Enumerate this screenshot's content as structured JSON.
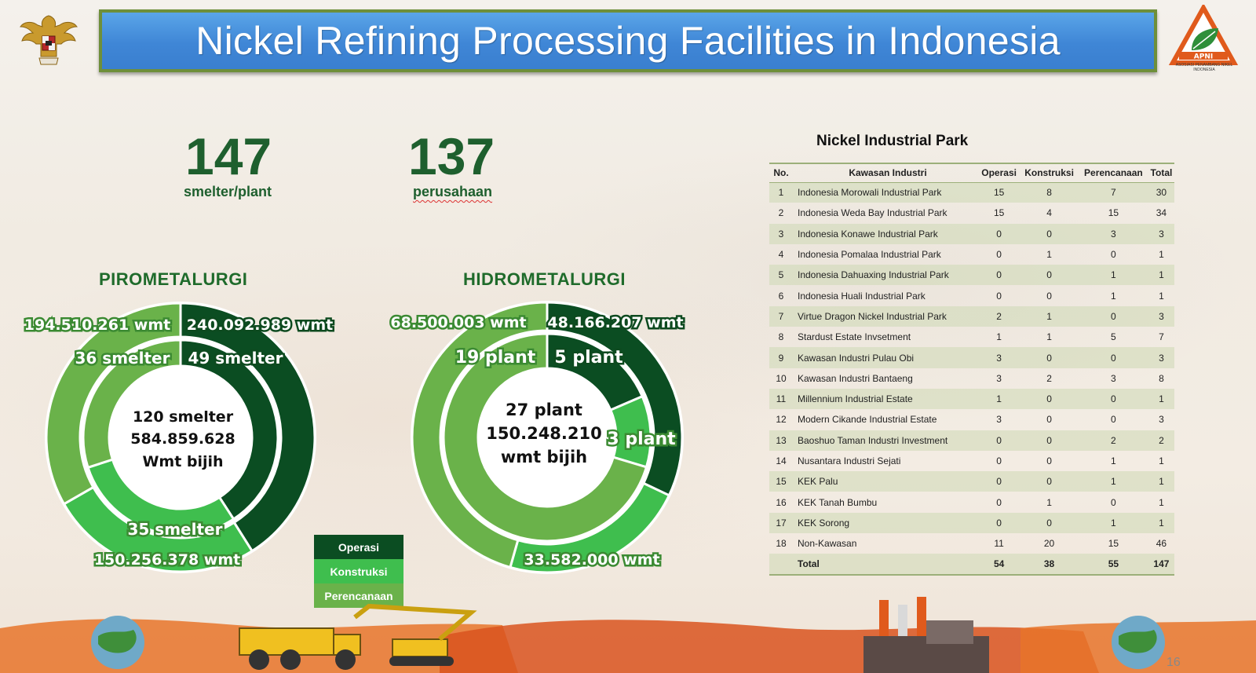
{
  "header": {
    "title": "Nickel Refining Processing Facilities in Indonesia"
  },
  "logo": {
    "apni": "APNI",
    "apni_caption": "ASOSIASI PENAMBANG NIKEL INDONESIA"
  },
  "stats": [
    {
      "value": "147",
      "label": "smelter/plant"
    },
    {
      "value": "137",
      "label": "perusahaan"
    }
  ],
  "colors": {
    "operasi": "#0b4d22",
    "konstruksi": "#3fbe4e",
    "perencanaan": "#6ab24a",
    "title_blue": "#3f86d6"
  },
  "chart_data": [
    {
      "type": "pie",
      "title": "PIROMETALURGI",
      "center": [
        "120 smelter",
        "584.859.628",
        "Wmt bijih"
      ],
      "categories": [
        "Operasi",
        "Konstruksi",
        "Perencanaan"
      ],
      "series": [
        {
          "name": "capacity_wmt",
          "values": [
            240092989,
            150256378,
            194510261
          ],
          "labels": [
            "240.092.989 wmt",
            "150.256.378 wmt",
            "194.510.261 wmt"
          ]
        },
        {
          "name": "units",
          "values": [
            49,
            35,
            36
          ],
          "labels": [
            "49 smelter",
            "35 smelter",
            "36 smelter"
          ]
        }
      ]
    },
    {
      "type": "pie",
      "title": "HIDROMETALURGI",
      "center": [
        "27 plant",
        "150.248.210",
        "wmt bijih"
      ],
      "categories": [
        "Operasi",
        "Konstruksi",
        "Perencanaan"
      ],
      "series": [
        {
          "name": "capacity_wmt",
          "values": [
            48166207,
            33582000,
            68500003
          ],
          "labels": [
            "48.166.207 wmt",
            "33.582.000 wmt",
            "68.500.003 wmt"
          ]
        },
        {
          "name": "units",
          "values": [
            5,
            3,
            19
          ],
          "labels": [
            "5 plant",
            "3 plant",
            "19 plant"
          ]
        }
      ]
    }
  ],
  "legend": [
    "Operasi",
    "Konstruksi",
    "Perencanaan"
  ],
  "park": {
    "title": "Nickel Industrial Park",
    "headers": [
      "No.",
      "Kawasan Industri",
      "Operasi",
      "Konstruksi",
      "Perencanaan",
      "Total"
    ],
    "rows": [
      [
        "1",
        "Indonesia Morowali Industrial Park",
        "15",
        "8",
        "7",
        "30"
      ],
      [
        "2",
        "Indonesia Weda Bay Industrial Park",
        "15",
        "4",
        "15",
        "34"
      ],
      [
        "3",
        "Indonesia Konawe Industrial Park",
        "0",
        "0",
        "3",
        "3"
      ],
      [
        "4",
        "Indonesia Pomalaa Industrial Park",
        "0",
        "1",
        "0",
        "1"
      ],
      [
        "5",
        "Indonesia Dahuaxing Industrial Park",
        "0",
        "0",
        "1",
        "1"
      ],
      [
        "6",
        "Indonesia Huali Industrial Park",
        "0",
        "0",
        "1",
        "1"
      ],
      [
        "7",
        "Virtue Dragon Nickel Industrial Park",
        "2",
        "1",
        "0",
        "3"
      ],
      [
        "8",
        "Stardust Estate Invsetment",
        "1",
        "1",
        "5",
        "7"
      ],
      [
        "9",
        "Kawasan Industri Pulau Obi",
        "3",
        "0",
        "0",
        "3"
      ],
      [
        "10",
        "Kawasan Industri Bantaeng",
        "3",
        "2",
        "3",
        "8"
      ],
      [
        "11",
        "Millennium Industrial Estate",
        "1",
        "0",
        "0",
        "1"
      ],
      [
        "12",
        "Modern Cikande Industrial Estate",
        "3",
        "0",
        "0",
        "3"
      ],
      [
        "13",
        "Baoshuo Taman Industri Investment",
        "0",
        "0",
        "2",
        "2"
      ],
      [
        "14",
        "Nusantara Industri Sejati",
        "0",
        "0",
        "1",
        "1"
      ],
      [
        "15",
        "KEK Palu",
        "0",
        "0",
        "1",
        "1"
      ],
      [
        "16",
        "KEK Tanah Bumbu",
        "0",
        "1",
        "0",
        "1"
      ],
      [
        "17",
        "KEK Sorong",
        "0",
        "0",
        "1",
        "1"
      ],
      [
        "18",
        "Non-Kawasan",
        "11",
        "20",
        "15",
        "46"
      ]
    ],
    "total": [
      "",
      "Total",
      "54",
      "38",
      "55",
      "147"
    ]
  },
  "page_number": "16"
}
